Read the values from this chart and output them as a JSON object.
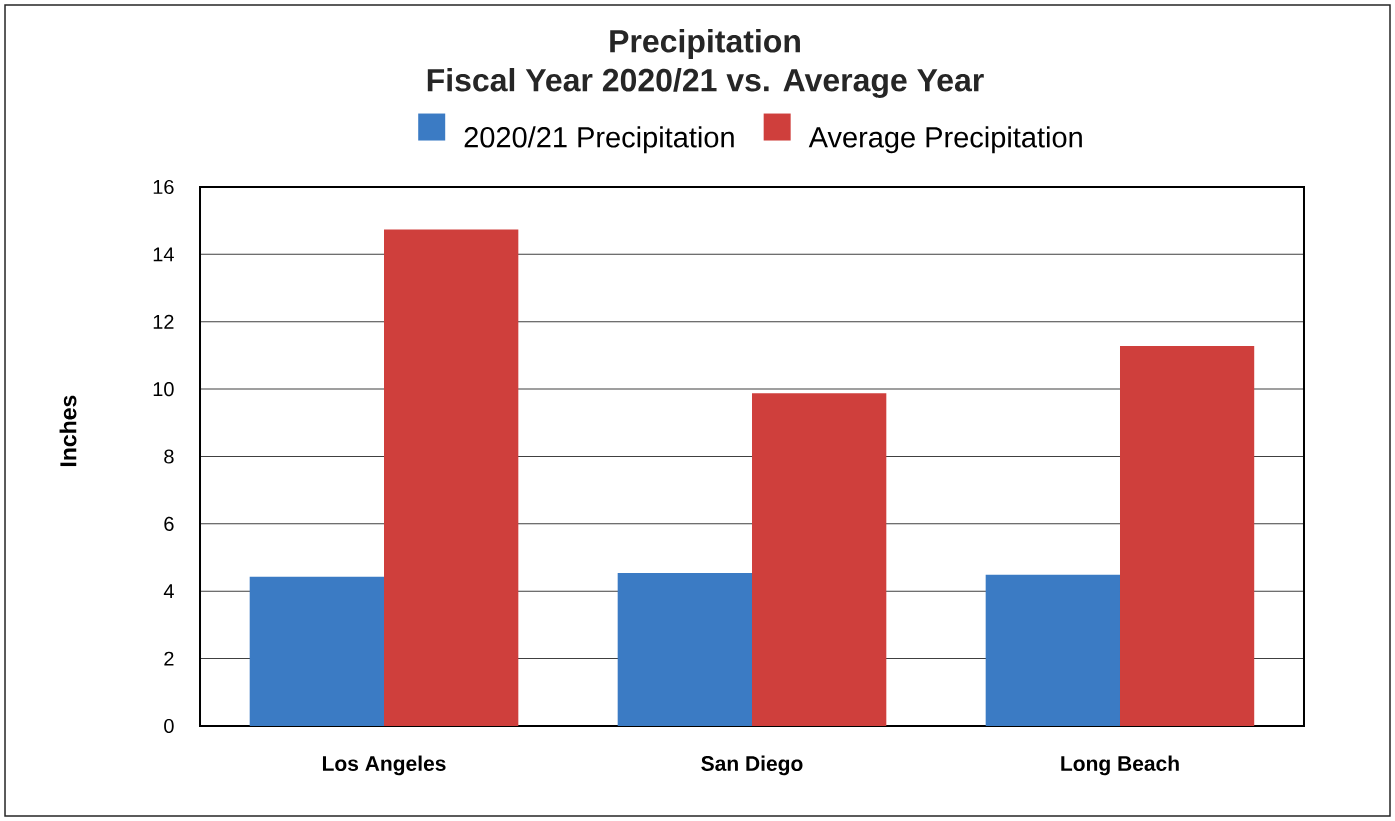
{
  "chart_data": {
    "type": "bar",
    "title": "Precipitation",
    "subtitle": "Fiscal Year 2020/21 vs. Average Year",
    "ylabel": "Inches",
    "categories": [
      "Los Angeles",
      "San Diego",
      "Long Beach"
    ],
    "series": [
      {
        "name": "2020/21 Precipitation",
        "color": "#3b7bc4",
        "values": [
          4.43,
          4.54,
          4.49
        ]
      },
      {
        "name": "Average Precipitation",
        "color": "#cf3f3c",
        "values": [
          14.74,
          9.88,
          11.28
        ]
      }
    ],
    "ylim": [
      0,
      16
    ],
    "yticks": [
      0,
      2,
      4,
      6,
      8,
      10,
      12,
      14,
      16
    ],
    "grid": "y",
    "legend": "top"
  }
}
